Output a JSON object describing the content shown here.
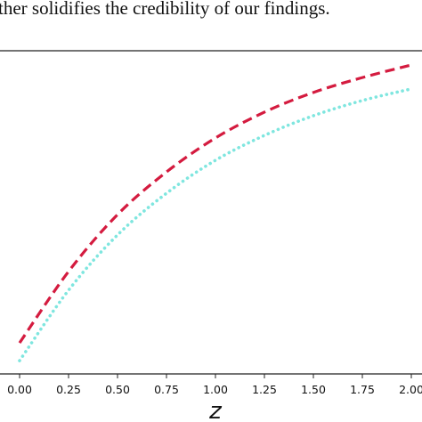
{
  "caption_fragment": "ther solidifies the credibility of our findings.",
  "chart_data": {
    "type": "line",
    "x_label": "z",
    "x": [
      0,
      0.25,
      0.5,
      0.75,
      1.0,
      1.25,
      1.5,
      1.75,
      2.0
    ],
    "series": [
      {
        "color": "#d41b3f",
        "style": "dashed",
        "values": [
          0.096,
          0.317,
          0.493,
          0.625,
          0.73,
          0.81,
          0.871,
          0.917,
          0.956
        ]
      },
      {
        "color": "#7fe6df",
        "style": "dotted",
        "values": [
          0.041,
          0.259,
          0.43,
          0.559,
          0.661,
          0.738,
          0.799,
          0.846,
          0.882
        ]
      }
    ],
    "xlim": [
      -0.1,
      2.1
    ],
    "ylim": [
      0,
      1
    ],
    "xticks": [
      {
        "value": 0,
        "label": "0.00"
      },
      {
        "value": 0.25,
        "label": "0.25"
      },
      {
        "value": 0.5,
        "label": "0.50"
      },
      {
        "value": 0.75,
        "label": "0.75"
      },
      {
        "value": 1.0,
        "label": "1.00"
      },
      {
        "value": 1.25,
        "label": "1.25"
      },
      {
        "value": 1.5,
        "label": "1.50"
      },
      {
        "value": 1.75,
        "label": "1.75"
      },
      {
        "value": 2.0,
        "label": "2.00"
      }
    ]
  }
}
